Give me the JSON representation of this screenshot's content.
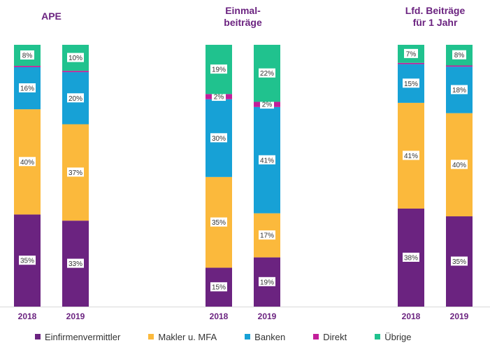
{
  "chart_data": {
    "type": "bar",
    "stacked": true,
    "percent": true,
    "grid": false,
    "legend_position": "bottom",
    "groups": [
      {
        "title_lines": [
          "APE"
        ],
        "categories": [
          "2018",
          "2019"
        ],
        "series_values": {
          "Einfirmenvermittler": [
            35,
            33
          ],
          "Makler u. MFA": [
            40,
            37
          ],
          "Banken": [
            16,
            20
          ],
          "Direkt": [
            0.5,
            0.5
          ],
          "Übrige": [
            8,
            10
          ]
        }
      },
      {
        "title_lines": [
          "Einmal-",
          "beiträge"
        ],
        "categories": [
          "2018",
          "2019"
        ],
        "series_values": {
          "Einfirmenvermittler": [
            15,
            19
          ],
          "Makler u. MFA": [
            35,
            17
          ],
          "Banken": [
            30,
            41
          ],
          "Direkt": [
            2,
            2
          ],
          "Übrige": [
            19,
            22
          ]
        }
      },
      {
        "title_lines": [
          "Lfd. Beiträge",
          "für 1 Jahr"
        ],
        "categories": [
          "2018",
          "2019"
        ],
        "series_values": {
          "Einfirmenvermittler": [
            38,
            35
          ],
          "Makler u. MFA": [
            41,
            40
          ],
          "Banken": [
            15,
            18
          ],
          "Direkt": [
            0.5,
            0.5
          ],
          "Übrige": [
            7,
            8
          ]
        }
      }
    ],
    "series": [
      {
        "name": "Einfirmenvermittler",
        "color": "#6b2380"
      },
      {
        "name": "Makler u. MFA",
        "color": "#fbb93c"
      },
      {
        "name": "Banken",
        "color": "#17a1d6"
      },
      {
        "name": "Direkt",
        "color": "#c31f9a"
      },
      {
        "name": "Übrige",
        "color": "#20c28e"
      }
    ]
  }
}
